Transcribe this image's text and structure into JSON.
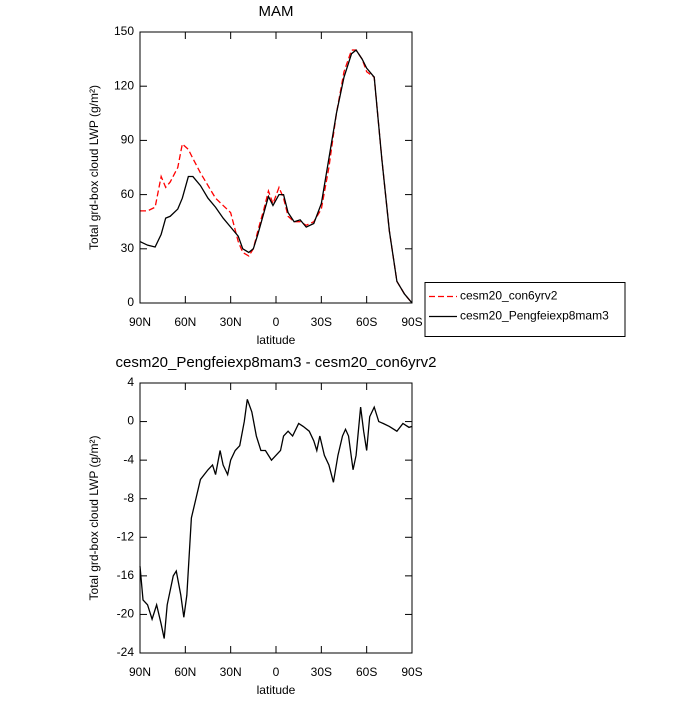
{
  "chart_data": [
    {
      "type": "line",
      "title": "MAM",
      "xlabel": "latitude",
      "ylabel": "Total grd-box cloud LWP (g/m²)",
      "xlim": [
        90,
        -90
      ],
      "xticks": [
        {
          "value": 90,
          "label": "90N"
        },
        {
          "value": 60,
          "label": "60N"
        },
        {
          "value": 30,
          "label": "30N"
        },
        0,
        {
          "value": -30,
          "label": "30S"
        },
        {
          "value": -60,
          "label": "60S"
        },
        {
          "value": -90,
          "label": "90S"
        }
      ],
      "ylim": [
        0,
        150
      ],
      "yticks": [
        0,
        30,
        60,
        90,
        120,
        150
      ],
      "legend": "right",
      "x": [
        90,
        85,
        80,
        76,
        73,
        70,
        65,
        62,
        58,
        55,
        50,
        45,
        40,
        35,
        30,
        25,
        22,
        18,
        15,
        12,
        8,
        5,
        2,
        -2,
        -5,
        -8,
        -12,
        -16,
        -20,
        -25,
        -30,
        -35,
        -40,
        -45,
        -50,
        -53,
        -57,
        -60,
        -65,
        -70,
        -75,
        -80,
        -85,
        -90
      ],
      "series": [
        {
          "name": "cesm20_con6yrv2",
          "color": "#ff0000",
          "dash": true,
          "values": [
            51,
            51,
            53,
            70,
            64,
            67,
            75,
            88,
            85,
            80,
            72,
            65,
            58,
            54,
            50,
            34,
            28,
            26,
            30,
            40,
            52,
            62,
            55,
            64,
            58,
            48,
            45,
            45,
            43,
            45,
            52,
            75,
            105,
            128,
            140,
            140,
            135,
            128,
            125,
            80,
            40,
            12,
            5,
            0
          ]
        },
        {
          "name": "cesm20_Pengfeiexp8mam3",
          "color": "#000000",
          "dash": false,
          "values": [
            34,
            32,
            31,
            38,
            47,
            48,
            52,
            58,
            70,
            70,
            65,
            58,
            53,
            47,
            42,
            37,
            30,
            28,
            30,
            38,
            50,
            59,
            54,
            60,
            60,
            50,
            45,
            46,
            42,
            44,
            55,
            80,
            105,
            125,
            138,
            140,
            135,
            130,
            125,
            80,
            40,
            12,
            5,
            0
          ]
        }
      ]
    },
    {
      "type": "line",
      "title": "cesm20_Pengfeiexp8mam3 - cesm20_con6yrv2",
      "xlabel": "latitude",
      "ylabel": "Total grd-box cloud LWP (g/m²)",
      "xlim": [
        90,
        -90
      ],
      "xticks": [
        {
          "value": 90,
          "label": "90N"
        },
        {
          "value": 60,
          "label": "60N"
        },
        {
          "value": 30,
          "label": "30N"
        },
        0,
        {
          "value": -30,
          "label": "30S"
        },
        {
          "value": -60,
          "label": "60S"
        },
        {
          "value": -90,
          "label": "90S"
        }
      ],
      "ylim": [
        -24,
        4
      ],
      "yticks": [
        -24,
        -20,
        -16,
        -12,
        -8,
        -4,
        0,
        4
      ],
      "x": [
        90,
        88,
        85,
        82,
        79,
        76,
        74,
        72,
        68,
        66,
        63,
        61,
        59,
        56,
        53,
        50,
        45,
        42,
        40,
        37,
        35,
        32,
        30,
        27,
        24,
        21,
        19,
        16,
        13,
        10,
        7,
        3,
        0,
        -3,
        -5,
        -8,
        -11,
        -15,
        -18,
        -22,
        -25,
        -27,
        -29,
        -32,
        -35,
        -38,
        -41,
        -44,
        -46,
        -48,
        -51,
        -53,
        -56,
        -58,
        -60,
        -62,
        -65,
        -68,
        -71,
        -75,
        -80,
        -84,
        -88,
        -90
      ],
      "color": "#000000",
      "values": [
        -15,
        -18.5,
        -19,
        -20.5,
        -19,
        -21,
        -22.5,
        -19,
        -16,
        -15.5,
        -18,
        -20.3,
        -18,
        -10,
        -8,
        -6,
        -5,
        -4.5,
        -5.5,
        -3,
        -4.5,
        -5.5,
        -4,
        -3,
        -2.5,
        0,
        2.3,
        1,
        -1.5,
        -3,
        -3,
        -4,
        -3.5,
        -3,
        -1.5,
        -1,
        -1.5,
        -0.2,
        -0.5,
        -1,
        -2,
        -3,
        -1.5,
        -3.5,
        -4.5,
        -6.3,
        -3.5,
        -1.5,
        -0.8,
        -1.5,
        -5,
        -3.5,
        1.5,
        -1,
        -3,
        0.5,
        1.5,
        0,
        -0.2,
        -0.5,
        -1,
        -0.2,
        -0.6,
        -0.5
      ]
    }
  ]
}
